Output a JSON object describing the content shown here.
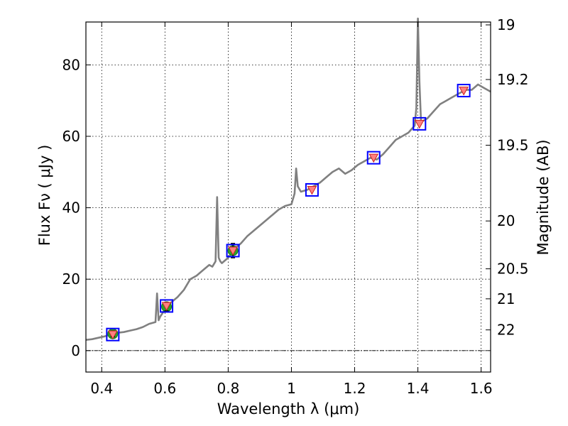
{
  "chart_data": {
    "type": "line",
    "xlabel": "Wavelength  λ (μm)",
    "ylabel": "Flux  Fν  ( μJy )",
    "y2label": "Magnitude (AB)",
    "xlim": [
      0.35,
      1.63
    ],
    "ylim": [
      -6,
      92
    ],
    "grid": true,
    "grid_style": "dotted",
    "x_ticks": [
      0.4,
      0.6,
      0.8,
      1.0,
      1.2,
      1.4,
      1.6
    ],
    "x_tick_labels": [
      "0.4",
      "0.6",
      "0.8",
      "1",
      "1.2",
      "1.4",
      "1.6"
    ],
    "y_ticks": [
      0,
      20,
      40,
      60,
      80
    ],
    "y_tick_labels": [
      "0",
      "20",
      "40",
      "60",
      "80"
    ],
    "y2_ticks": [
      {
        "label": "19",
        "flux": 91.2
      },
      {
        "label": "19.2",
        "flux": 75.9
      },
      {
        "label": "19.5",
        "flux": 57.5
      },
      {
        "label": "20",
        "flux": 36.3
      },
      {
        "label": "20.5",
        "flux": 22.9
      },
      {
        "label": "21",
        "flux": 14.5
      },
      {
        "label": "22",
        "flux": 5.8
      }
    ],
    "zero_line": {
      "y": 0,
      "style": "dash-dot"
    },
    "series": [
      {
        "kind": "model-spectrum",
        "color": "#808080",
        "x": [
          0.35,
          0.37,
          0.39,
          0.41,
          0.43,
          0.45,
          0.47,
          0.49,
          0.51,
          0.53,
          0.55,
          0.57,
          0.575,
          0.58,
          0.585,
          0.6,
          0.62,
          0.64,
          0.66,
          0.68,
          0.7,
          0.72,
          0.74,
          0.75,
          0.76,
          0.765,
          0.77,
          0.775,
          0.78,
          0.8,
          0.82,
          0.84,
          0.86,
          0.88,
          0.9,
          0.92,
          0.94,
          0.96,
          0.98,
          1.0,
          1.01,
          1.015,
          1.02,
          1.03,
          1.05,
          1.07,
          1.09,
          1.11,
          1.13,
          1.15,
          1.17,
          1.19,
          1.21,
          1.23,
          1.25,
          1.27,
          1.29,
          1.31,
          1.33,
          1.35,
          1.37,
          1.39,
          1.395,
          1.4,
          1.405,
          1.41,
          1.43,
          1.45,
          1.47,
          1.49,
          1.51,
          1.53,
          1.55,
          1.57,
          1.59,
          1.61,
          1.63
        ],
        "y": [
          3,
          3.2,
          3.6,
          4,
          4.6,
          5,
          5.2,
          5.6,
          6,
          6.6,
          7.5,
          8,
          16,
          8.5,
          9.5,
          11.5,
          13.5,
          15,
          17,
          20,
          21,
          22.5,
          24,
          23.5,
          25,
          43,
          26,
          25,
          24.5,
          26,
          28.5,
          30,
          32,
          33.5,
          35,
          36.5,
          38,
          39.5,
          40.5,
          41,
          44,
          51,
          46,
          44.5,
          45,
          46,
          47,
          48.5,
          50,
          51,
          49.5,
          50.5,
          52,
          53,
          54,
          53.5,
          55,
          57,
          59,
          60,
          61,
          63,
          68,
          93,
          75,
          64,
          65,
          67,
          69,
          70,
          71,
          72,
          73,
          73,
          74.5,
          73.5,
          72.5
        ]
      },
      {
        "kind": "observed-photometry",
        "color": "#2ca02c",
        "x": [
          0.435,
          0.605,
          0.815
        ],
        "y": [
          4.7,
          12.3,
          28.0
        ],
        "yerr": [
          0.8,
          1.2,
          2.0
        ]
      },
      {
        "kind": "model-photometry",
        "color": "#0000ff",
        "fill": "#ff8080",
        "x": [
          0.435,
          0.605,
          0.815,
          1.065,
          1.26,
          1.405,
          1.545
        ],
        "y": [
          4.5,
          12.5,
          28.0,
          45.0,
          54.0,
          63.5,
          72.8
        ]
      }
    ]
  }
}
